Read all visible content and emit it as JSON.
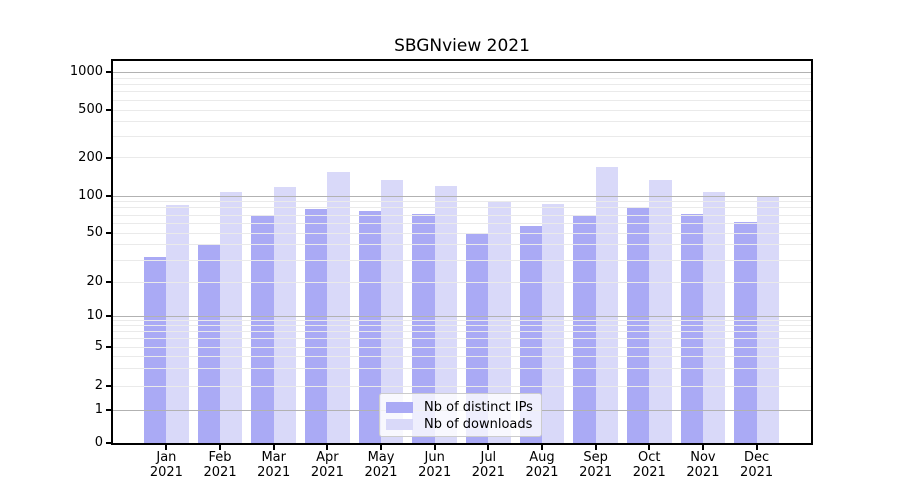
{
  "chart_data": {
    "type": "bar",
    "title": "SBGNview 2021",
    "categories": [
      "Jan 2021",
      "Feb 2021",
      "Mar 2021",
      "Apr 2021",
      "May 2021",
      "Jun 2021",
      "Jul 2021",
      "Aug 2021",
      "Sep 2021",
      "Oct 2021",
      "Nov 2021",
      "Dec 2021"
    ],
    "series": [
      {
        "name": "Nb of distinct IPs",
        "color": "#aaaaf5",
        "values": [
          32,
          41,
          70,
          78,
          76,
          72,
          50,
          57,
          70,
          80,
          72,
          62
        ]
      },
      {
        "name": "Nb of downloads",
        "color": "#d9d9f9",
        "values": [
          85,
          108,
          118,
          153,
          133,
          120,
          90,
          86,
          168,
          133,
          107,
          100
        ]
      }
    ],
    "yscale": "symlog",
    "yticks": [
      0,
      1,
      2,
      5,
      10,
      20,
      50,
      100,
      200,
      500,
      1000
    ],
    "ylim": [
      0,
      1250
    ],
    "grid": "major-and-minor, drawn over bars",
    "legend_position": "lower center",
    "colors": {
      "major_gridline": "#b2b2b2",
      "minor_gridline": "#eaeaea",
      "axis": "#000000",
      "background": "#ffffff"
    }
  }
}
